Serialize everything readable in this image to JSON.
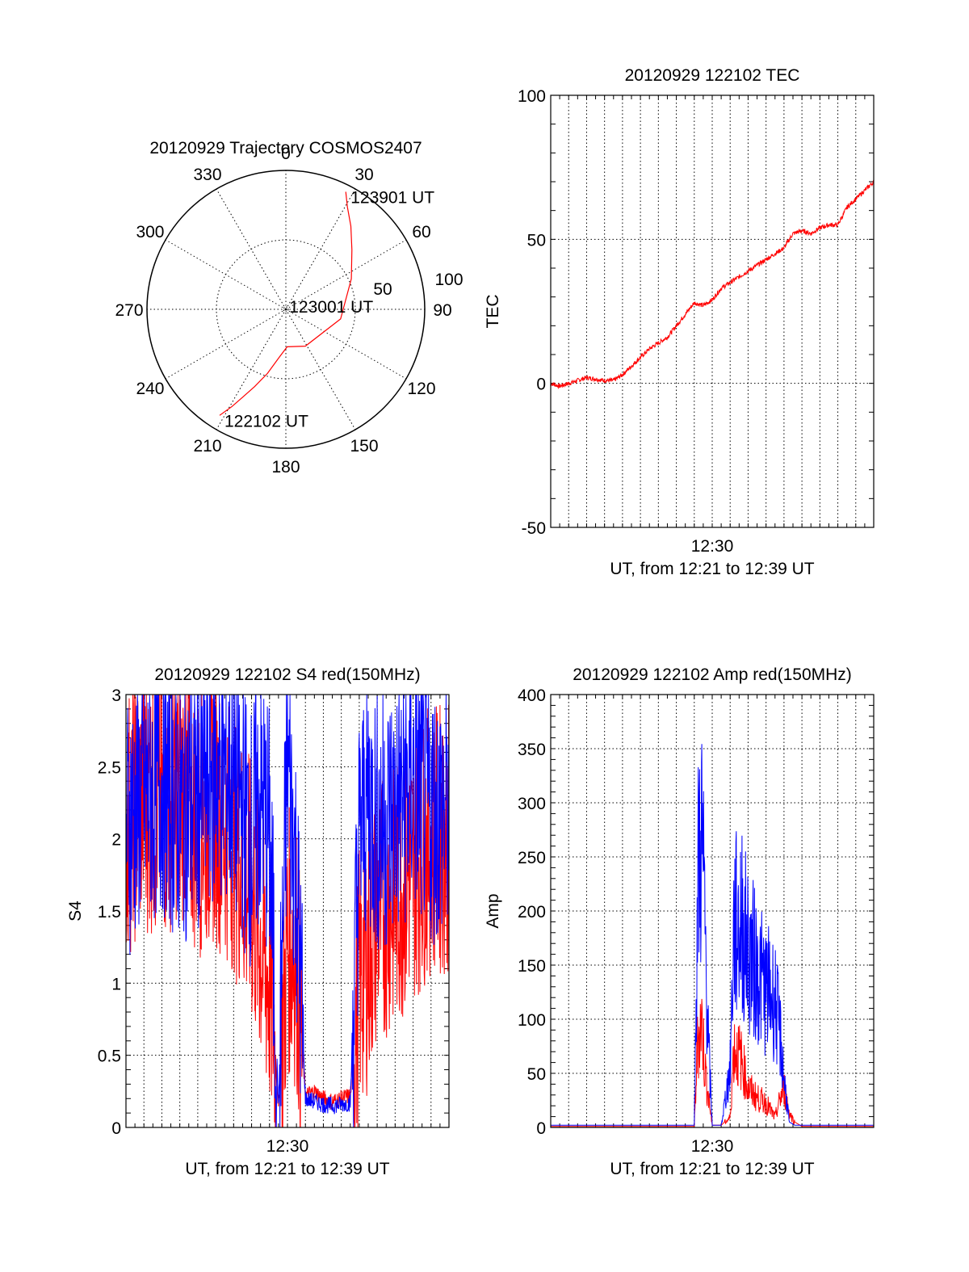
{
  "chart_data": [
    {
      "type": "polar",
      "title": "20120929 Trajectory COSMOS2407",
      "azimuth_labels": [
        "0",
        "30",
        "60",
        "90",
        "120",
        "150",
        "180",
        "210",
        "240",
        "270",
        "300",
        "330"
      ],
      "radial_tick_labels": [
        "50",
        "100"
      ],
      "radial_ticks": [
        50,
        100
      ],
      "r_max": 100,
      "grid": true,
      "series_color": "#ff0000",
      "annotations": [
        {
          "text": "123901 UT",
          "azimuth_deg": 27,
          "r": 95
        },
        {
          "text": "123001 UT",
          "azimuth_deg": 350,
          "r": 6
        },
        {
          "text": "122102 UT",
          "azimuth_deg": 212,
          "r": 90
        }
      ],
      "trajectory": {
        "azimuth_deg": [
          27,
          31,
          38,
          48,
          65,
          100,
          152,
          178,
          188,
          196,
          202,
          206,
          209,
          212
        ],
        "r": [
          95,
          86,
          76,
          64,
          52,
          40,
          30,
          27,
          35,
          48,
          60,
          70,
          80,
          90
        ]
      }
    },
    {
      "type": "line",
      "title": "20120929 122102 TEC",
      "xlabel": "UT, from 12:21 to 12:39 UT",
      "ylabel": "TEC",
      "x_tick_labels": [
        "12:30"
      ],
      "y_tick_labels": [
        "-50",
        "0",
        "50",
        "100"
      ],
      "y_ticks": [
        -50,
        0,
        50,
        100
      ],
      "xlim": [
        0,
        18
      ],
      "ylim": [
        -50,
        100
      ],
      "grid": true,
      "series": [
        {
          "color": "#ff0000",
          "x": [
            0,
            0.5,
            1,
            1.5,
            2,
            2.5,
            3,
            3.5,
            4,
            4.5,
            5,
            5.5,
            6,
            6.5,
            7,
            7.5,
            8,
            8.5,
            9,
            9.5,
            10,
            10.5,
            11,
            11.5,
            12,
            12.5,
            13,
            13.5,
            14,
            14.5,
            15,
            15.5,
            16,
            16.5,
            17,
            17.5,
            18
          ],
          "y": [
            0,
            -1,
            0,
            1,
            2,
            1.5,
            1,
            1,
            3,
            6,
            9,
            12,
            14,
            16,
            20,
            24,
            28,
            27,
            29,
            33,
            35,
            37,
            39,
            41,
            43,
            45,
            47,
            52,
            53,
            52,
            54,
            55,
            55,
            61,
            64,
            67,
            70
          ]
        }
      ]
    },
    {
      "type": "line",
      "title": "20120929 122102 S4 red(150MHz)",
      "xlabel": "UT, from 12:21 to 12:39 UT",
      "ylabel": "S4",
      "x_tick_labels": [
        "12:30"
      ],
      "y_tick_labels": [
        "0",
        "0.5",
        "1",
        "1.5",
        "2",
        "2.5",
        "3"
      ],
      "y_ticks": [
        0,
        0.5,
        1,
        1.5,
        2,
        2.5,
        3
      ],
      "xlim": [
        0,
        18
      ],
      "ylim": [
        0,
        3
      ],
      "grid": true,
      "series": [
        {
          "color": "#ff0000",
          "x": [
            0,
            1,
            2,
            3,
            4,
            5,
            6,
            7,
            7.5,
            8,
            8.2,
            8.5,
            9,
            9.5,
            10,
            10.5,
            11,
            11.5,
            12,
            12.5,
            13,
            13.5,
            14,
            15,
            16,
            17,
            18
          ],
          "y": [
            2.1,
            2.3,
            2.2,
            2.4,
            2.1,
            2.2,
            2.0,
            1.6,
            1.3,
            1.0,
            0.8,
            0.12,
            1.3,
            1.2,
            0.22,
            0.25,
            0.2,
            0.18,
            0.2,
            0.22,
            1.0,
            1.2,
            1.5,
            1.6,
            1.8,
            2.0,
            2.0
          ]
        },
        {
          "color": "#0000ff",
          "x": [
            0,
            1,
            2,
            3,
            4,
            5,
            6,
            7,
            7.5,
            8,
            8.5,
            9,
            9.5,
            10,
            10.5,
            11,
            11.5,
            12,
            12.5,
            13,
            13.5,
            14,
            15,
            16,
            17,
            18
          ],
          "y": [
            2.1,
            2.3,
            2.4,
            2.2,
            2.3,
            2.5,
            2.4,
            2.0,
            2.3,
            2.0,
            0.13,
            2.6,
            1.7,
            0.2,
            0.18,
            0.16,
            0.15,
            0.16,
            0.17,
            2.0,
            2.3,
            2.1,
            2.2,
            2.4,
            2.2,
            2.2
          ]
        }
      ]
    },
    {
      "type": "line",
      "title": "20120929 122102 Amp red(150MHz)",
      "xlabel": "UT, from 12:21 to 12:39 UT",
      "ylabel": "Amp",
      "x_tick_labels": [
        "12:30"
      ],
      "y_tick_labels": [
        "0",
        "50",
        "100",
        "150",
        "200",
        "250",
        "300",
        "350",
        "400"
      ],
      "y_ticks": [
        0,
        50,
        100,
        150,
        200,
        250,
        300,
        350,
        400
      ],
      "xlim": [
        0,
        18
      ],
      "ylim": [
        0,
        400
      ],
      "grid": true,
      "series": [
        {
          "color": "#ff0000",
          "x": [
            0,
            8,
            8.2,
            8.4,
            8.6,
            8.8,
            9.0,
            9.5,
            10.0,
            10.2,
            10.6,
            11.0,
            11.5,
            12.0,
            12.5,
            12.8,
            13.0,
            13.3,
            13.6,
            14.0,
            18
          ],
          "y": [
            1,
            1,
            90,
            110,
            60,
            30,
            2,
            2,
            10,
            80,
            70,
            40,
            30,
            25,
            10,
            30,
            40,
            15,
            5,
            1,
            1
          ]
        },
        {
          "color": "#0000ff",
          "x": [
            0,
            8,
            8.2,
            8.4,
            8.6,
            8.8,
            9.0,
            9.5,
            10.0,
            10.2,
            10.6,
            11.0,
            11.5,
            12.0,
            12.5,
            12.8,
            13.0,
            13.3,
            13.6,
            14.0,
            18
          ],
          "y": [
            2,
            2,
            250,
            300,
            200,
            80,
            2,
            2,
            60,
            200,
            210,
            180,
            160,
            140,
            130,
            90,
            50,
            5,
            2,
            2,
            2
          ]
        }
      ]
    }
  ]
}
